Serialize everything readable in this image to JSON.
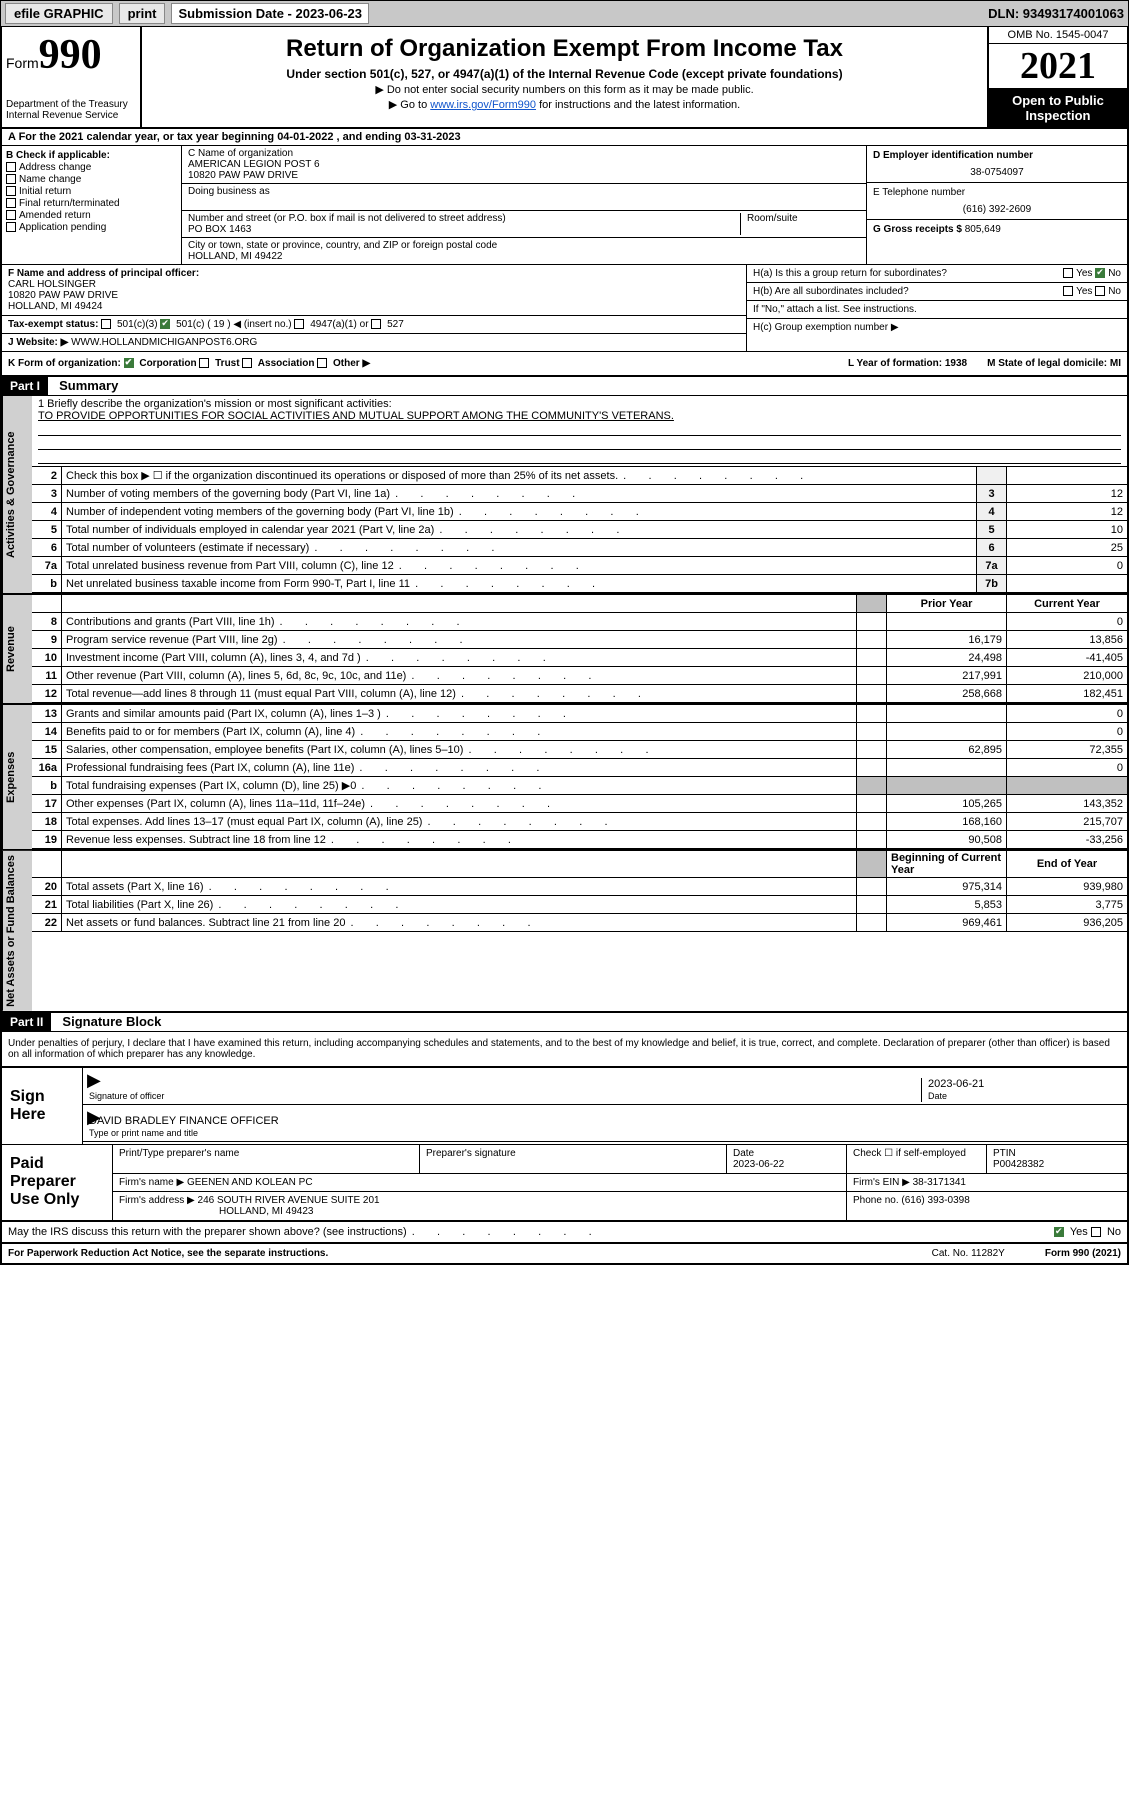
{
  "topbar": {
    "efile": "efile GRAPHIC",
    "print": "print",
    "sub_date_label": "Submission Date - 2023-06-23",
    "dln": "DLN: 93493174001063"
  },
  "header": {
    "form_word": "Form",
    "form_num": "990",
    "dept": "Department of the Treasury",
    "irs": "Internal Revenue Service",
    "title": "Return of Organization Exempt From Income Tax",
    "sub": "Under section 501(c), 527, or 4947(a)(1) of the Internal Revenue Code (except private foundations)",
    "note1": "▶ Do not enter social security numbers on this form as it may be made public.",
    "note2_pre": "▶ Go to ",
    "note2_link": "www.irs.gov/Form990",
    "note2_post": " for instructions and the latest information.",
    "omb": "OMB No. 1545-0047",
    "year": "2021",
    "otp1": "Open to Public",
    "otp2": "Inspection"
  },
  "rowA": "A For the 2021 calendar year, or tax year beginning 04-01-2022   , and ending 03-31-2023",
  "B": {
    "lbl": "B Check if applicable:",
    "o1": "Address change",
    "o2": "Name change",
    "o3": "Initial return",
    "o4": "Final return/terminated",
    "o5": "Amended return",
    "o6": "Application pending"
  },
  "C": {
    "name_lbl": "C Name of organization",
    "name1": "AMERICAN LEGION POST 6",
    "name2": "10820 PAW PAW DRIVE",
    "dba_lbl": "Doing business as",
    "addr_lbl": "Number and street (or P.O. box if mail is not delivered to street address)",
    "room_lbl": "Room/suite",
    "addr": "PO BOX 1463",
    "city_lbl": "City or town, state or province, country, and ZIP or foreign postal code",
    "city": "HOLLAND, MI  49422"
  },
  "D": {
    "ein_lbl": "D Employer identification number",
    "ein": "38-0754097",
    "tel_lbl": "E Telephone number",
    "tel": "(616) 392-2609",
    "gross_lbl": "G Gross receipts $",
    "gross": "805,649"
  },
  "F": {
    "lbl": "F  Name and address of principal officer:",
    "name": "CARL HOLSINGER",
    "addr1": "10820 PAW PAW DRIVE",
    "addr2": "HOLLAND, MI  49424"
  },
  "H": {
    "a": "H(a)  Is this a group return for subordinates?",
    "b": "H(b)  Are all subordinates included?",
    "b_note": "If \"No,\" attach a list. See instructions.",
    "c": "H(c)  Group exemption number ▶",
    "yes": "Yes",
    "no": "No"
  },
  "I": {
    "lbl": "Tax-exempt status:",
    "o1": "501(c)(3)",
    "o2": "501(c) ( 19 ) ◀ (insert no.)",
    "o3": "4947(a)(1) or",
    "o4": "527"
  },
  "J": {
    "lbl": "J   Website: ▶",
    "val": "WWW.HOLLANDMICHIGANPOST6.ORG"
  },
  "K": {
    "lbl": "K Form of organization:",
    "o1": "Corporation",
    "o2": "Trust",
    "o3": "Association",
    "o4": "Other ▶",
    "L": "L Year of formation: 1938",
    "M": "M State of legal domicile: MI"
  },
  "part1": {
    "hdr": "Part I",
    "title": "Summary"
  },
  "mission": {
    "lbl": "1   Briefly describe the organization's mission or most significant activities:",
    "txt": "TO PROVIDE OPPORTUNITIES FOR SOCIAL ACTIVITIES AND MUTUAL SUPPORT AMONG THE COMMUNITY'S VETERANS."
  },
  "lines_governance": [
    {
      "n": "2",
      "t": "Check this box ▶ ☐  if the organization discontinued its operations or disposed of more than 25% of its net assets.",
      "b": "",
      "v": ""
    },
    {
      "n": "3",
      "t": "Number of voting members of the governing body (Part VI, line 1a)",
      "b": "3",
      "v": "12"
    },
    {
      "n": "4",
      "t": "Number of independent voting members of the governing body (Part VI, line 1b)",
      "b": "4",
      "v": "12"
    },
    {
      "n": "5",
      "t": "Total number of individuals employed in calendar year 2021 (Part V, line 2a)",
      "b": "5",
      "v": "10"
    },
    {
      "n": "6",
      "t": "Total number of volunteers (estimate if necessary)",
      "b": "6",
      "v": "25"
    },
    {
      "n": "7a",
      "t": "Total unrelated business revenue from Part VIII, column (C), line 12",
      "b": "7a",
      "v": "0"
    },
    {
      "n": "b",
      "t": "Net unrelated business taxable income from Form 990-T, Part I, line 11",
      "b": "7b",
      "v": ""
    }
  ],
  "col_hdrs": {
    "prior": "Prior Year",
    "current": "Current Year",
    "beg": "Beginning of Current Year",
    "end": "End of Year"
  },
  "revenue": [
    {
      "n": "8",
      "t": "Contributions and grants (Part VIII, line 1h)",
      "p": "",
      "c": "0"
    },
    {
      "n": "9",
      "t": "Program service revenue (Part VIII, line 2g)",
      "p": "16,179",
      "c": "13,856"
    },
    {
      "n": "10",
      "t": "Investment income (Part VIII, column (A), lines 3, 4, and 7d )",
      "p": "24,498",
      "c": "-41,405"
    },
    {
      "n": "11",
      "t": "Other revenue (Part VIII, column (A), lines 5, 6d, 8c, 9c, 10c, and 11e)",
      "p": "217,991",
      "c": "210,000"
    },
    {
      "n": "12",
      "t": "Total revenue—add lines 8 through 11 (must equal Part VIII, column (A), line 12)",
      "p": "258,668",
      "c": "182,451"
    }
  ],
  "expenses": [
    {
      "n": "13",
      "t": "Grants and similar amounts paid (Part IX, column (A), lines 1–3 )",
      "p": "",
      "c": "0"
    },
    {
      "n": "14",
      "t": "Benefits paid to or for members (Part IX, column (A), line 4)",
      "p": "",
      "c": "0"
    },
    {
      "n": "15",
      "t": "Salaries, other compensation, employee benefits (Part IX, column (A), lines 5–10)",
      "p": "62,895",
      "c": "72,355"
    },
    {
      "n": "16a",
      "t": "Professional fundraising fees (Part IX, column (A), line 11e)",
      "p": "",
      "c": "0"
    },
    {
      "n": "b",
      "t": "Total fundraising expenses (Part IX, column (D), line 25) ▶0",
      "p": "",
      "c": "",
      "shade": true
    },
    {
      "n": "17",
      "t": "Other expenses (Part IX, column (A), lines 11a–11d, 11f–24e)",
      "p": "105,265",
      "c": "143,352"
    },
    {
      "n": "18",
      "t": "Total expenses. Add lines 13–17 (must equal Part IX, column (A), line 25)",
      "p": "168,160",
      "c": "215,707"
    },
    {
      "n": "19",
      "t": "Revenue less expenses. Subtract line 18 from line 12",
      "p": "90,508",
      "c": "-33,256"
    }
  ],
  "netassets": [
    {
      "n": "20",
      "t": "Total assets (Part X, line 16)",
      "p": "975,314",
      "c": "939,980"
    },
    {
      "n": "21",
      "t": "Total liabilities (Part X, line 26)",
      "p": "5,853",
      "c": "3,775"
    },
    {
      "n": "22",
      "t": "Net assets or fund balances. Subtract line 21 from line 20",
      "p": "969,461",
      "c": "936,205"
    }
  ],
  "side": {
    "gov": "Activities & Governance",
    "rev": "Revenue",
    "exp": "Expenses",
    "net": "Net Assets or Fund Balances"
  },
  "part2": {
    "hdr": "Part II",
    "title": "Signature Block"
  },
  "sig": {
    "decl": "Under penalties of perjury, I declare that I have examined this return, including accompanying schedules and statements, and to the best of my knowledge and belief, it is true, correct, and complete. Declaration of preparer (other than officer) is based on all information of which preparer has any knowledge.",
    "here": "Sign Here",
    "sig_of": "Signature of officer",
    "date": "Date",
    "date_val": "2023-06-21",
    "name": "DAVID BRADLEY FINANCE OFFICER",
    "name_lbl": "Type or print name and title"
  },
  "prep": {
    "title": "Paid Preparer Use Only",
    "h1": "Print/Type preparer's name",
    "h2": "Preparer's signature",
    "h3": "Date",
    "h3v": "2023-06-22",
    "h4": "Check ☐ if self-employed",
    "h5": "PTIN",
    "h5v": "P00428382",
    "firm_lbl": "Firm's name    ▶",
    "firm": "GEENEN AND KOLEAN PC",
    "ein_lbl": "Firm's EIN ▶",
    "ein": "38-3171341",
    "addr_lbl": "Firm's address ▶",
    "addr1": "246 SOUTH RIVER AVENUE SUITE 201",
    "addr2": "HOLLAND, MI  49423",
    "ph_lbl": "Phone no.",
    "ph": "(616) 393-0398"
  },
  "footer": {
    "discuss": "May the IRS discuss this return with the preparer shown above? (see instructions)",
    "yes": "Yes",
    "no": "No",
    "pra": "For Paperwork Reduction Act Notice, see the separate instructions.",
    "cat": "Cat. No. 11282Y",
    "form": "Form 990 (2021)"
  }
}
